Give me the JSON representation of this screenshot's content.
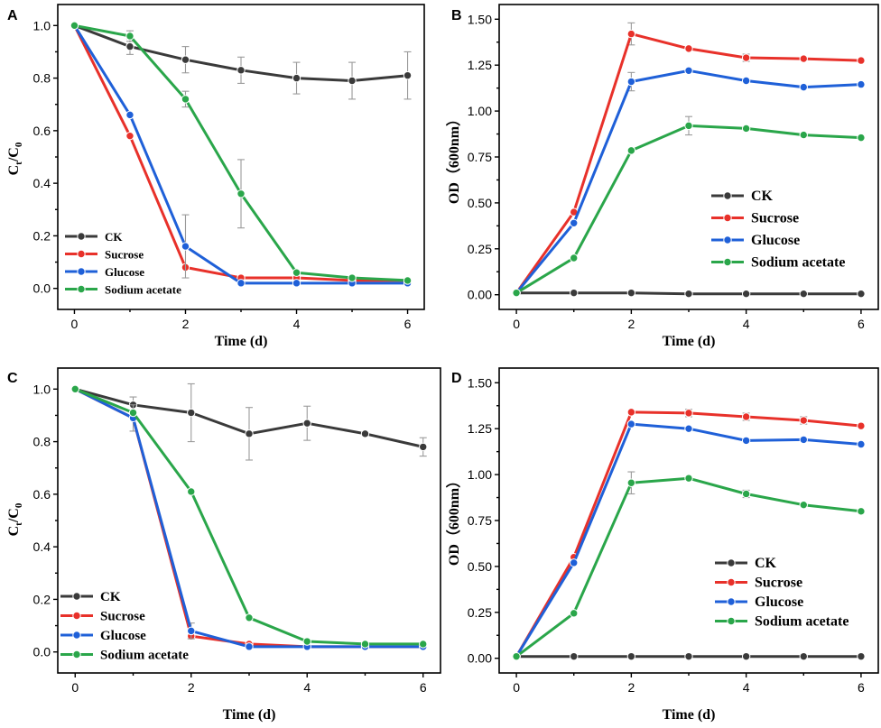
{
  "chart_data": [
    {
      "panel": "A",
      "type": "line",
      "xlabel": "Time (d)",
      "ylabel": "Ct/C0",
      "xlim": [
        -0.3,
        6.3
      ],
      "ylim": [
        -0.08,
        1.08
      ],
      "xticks": [
        0,
        2,
        4,
        6
      ],
      "xtick_labels": [
        "0",
        "2",
        "4",
        "6"
      ],
      "yticks": [
        0.0,
        0.2,
        0.4,
        0.6,
        0.8,
        1.0
      ],
      "ytick_labels": [
        "0.0",
        "0.2",
        "0.4",
        "0.6",
        "0.8",
        "1.0"
      ],
      "legend_position": "bottom-left",
      "series": [
        {
          "name": "CK",
          "color": "#3a3a3a",
          "x": [
            0,
            1,
            2,
            3,
            4,
            5,
            6
          ],
          "y": [
            1.0,
            0.92,
            0.87,
            0.83,
            0.8,
            0.79,
            0.81
          ],
          "err": [
            0,
            0.03,
            0.05,
            0.05,
            0.06,
            0.07,
            0.09
          ]
        },
        {
          "name": "Sucrose",
          "color": "#e8312a",
          "x": [
            0,
            1,
            2,
            3,
            4,
            5,
            6
          ],
          "y": [
            1.0,
            0.58,
            0.08,
            0.04,
            0.04,
            0.03,
            0.03
          ],
          "err": [
            0,
            0,
            0,
            0,
            0,
            0,
            0
          ]
        },
        {
          "name": "Glucose",
          "color": "#1f60d8",
          "x": [
            0,
            1,
            2,
            3,
            4,
            5,
            6
          ],
          "y": [
            1.0,
            0.66,
            0.16,
            0.02,
            0.02,
            0.02,
            0.02
          ],
          "err": [
            0,
            0,
            0.12,
            0,
            0,
            0,
            0
          ]
        },
        {
          "name": "Sodium acetate",
          "color": "#2aa64a",
          "x": [
            0,
            1,
            2,
            3,
            4,
            5,
            6
          ],
          "y": [
            1.0,
            0.96,
            0.72,
            0.36,
            0.06,
            0.04,
            0.03
          ],
          "err": [
            0,
            0.02,
            0.03,
            0.13,
            0,
            0,
            0
          ]
        }
      ]
    },
    {
      "panel": "B",
      "type": "line",
      "xlabel": "Time (d)",
      "ylabel": "OD（600nm）",
      "xlim": [
        -0.3,
        6.3
      ],
      "ylim": [
        -0.08,
        1.58
      ],
      "xticks": [
        0,
        2,
        4,
        6
      ],
      "xtick_labels": [
        "0",
        "2",
        "4",
        "6"
      ],
      "yticks": [
        0.0,
        0.25,
        0.5,
        0.75,
        1.0,
        1.25,
        1.5
      ],
      "ytick_labels": [
        "0.00",
        "0.25",
        "0.50",
        "0.75",
        "1.00",
        "1.25",
        "1.50"
      ],
      "legend_position": "center-right",
      "series": [
        {
          "name": "CK",
          "color": "#3a3a3a",
          "x": [
            0,
            1,
            2,
            3,
            4,
            5,
            6
          ],
          "y": [
            0.01,
            0.01,
            0.01,
            0.005,
            0.005,
            0.005,
            0.005
          ],
          "err": [
            0,
            0,
            0,
            0,
            0,
            0,
            0
          ]
        },
        {
          "name": "Sucrose",
          "color": "#e8312a",
          "x": [
            0,
            1,
            2,
            3,
            4,
            5,
            6
          ],
          "y": [
            0.01,
            0.45,
            1.42,
            1.34,
            1.29,
            1.285,
            1.275
          ],
          "err": [
            0,
            0,
            0.06,
            0,
            0.02,
            0,
            0
          ]
        },
        {
          "name": "Glucose",
          "color": "#1f60d8",
          "x": [
            0,
            1,
            2,
            3,
            4,
            5,
            6
          ],
          "y": [
            0.01,
            0.39,
            1.16,
            1.22,
            1.165,
            1.13,
            1.145
          ],
          "err": [
            0,
            0,
            0.05,
            0,
            0,
            0,
            0
          ]
        },
        {
          "name": "Sodium acetate",
          "color": "#2aa64a",
          "x": [
            0,
            1,
            2,
            3,
            4,
            5,
            6
          ],
          "y": [
            0.01,
            0.2,
            0.785,
            0.92,
            0.905,
            0.87,
            0.855
          ],
          "err": [
            0,
            0,
            0,
            0.05,
            0,
            0,
            0
          ]
        }
      ]
    },
    {
      "panel": "C",
      "type": "line",
      "xlabel": "Time (d)",
      "ylabel": "Ct/C0",
      "xlim": [
        -0.3,
        6.3
      ],
      "ylim": [
        -0.08,
        1.08
      ],
      "xticks": [
        0,
        2,
        4,
        6
      ],
      "xtick_labels": [
        "0",
        "2",
        "4",
        "6"
      ],
      "yticks": [
        0.0,
        0.2,
        0.4,
        0.6,
        0.8,
        1.0
      ],
      "ytick_labels": [
        "0.0",
        "0.2",
        "0.4",
        "0.6",
        "0.8",
        "1.0"
      ],
      "legend_position": "bottom-left",
      "series": [
        {
          "name": "CK",
          "color": "#3a3a3a",
          "x": [
            0,
            1,
            2,
            3,
            4,
            5,
            6
          ],
          "y": [
            1.0,
            0.94,
            0.91,
            0.83,
            0.87,
            0.83,
            0.78
          ],
          "err": [
            0,
            0.03,
            0.11,
            0.1,
            0.065,
            0,
            0.035
          ]
        },
        {
          "name": "Sucrose",
          "color": "#e8312a",
          "x": [
            0,
            1,
            2,
            3,
            4,
            5,
            6
          ],
          "y": [
            1.0,
            0.89,
            0.06,
            0.03,
            0.02,
            0.02,
            0.02
          ],
          "err": [
            0,
            0.05,
            0,
            0,
            0,
            0,
            0
          ]
        },
        {
          "name": "Glucose",
          "color": "#1f60d8",
          "x": [
            0,
            1,
            2,
            3,
            4,
            5,
            6
          ],
          "y": [
            1.0,
            0.89,
            0.08,
            0.02,
            0.02,
            0.02,
            0.02
          ],
          "err": [
            0,
            0,
            0.03,
            0,
            0,
            0,
            0
          ]
        },
        {
          "name": "Sodium acetate",
          "color": "#2aa64a",
          "x": [
            0,
            1,
            2,
            3,
            4,
            5,
            6
          ],
          "y": [
            1.0,
            0.91,
            0.61,
            0.13,
            0.04,
            0.03,
            0.03
          ],
          "err": [
            0,
            0,
            0,
            0,
            0,
            0,
            0
          ]
        }
      ]
    },
    {
      "panel": "D",
      "type": "line",
      "xlabel": "Time (d)",
      "ylabel": "OD（600nm）",
      "xlim": [
        -0.3,
        6.3
      ],
      "ylim": [
        -0.08,
        1.58
      ],
      "xticks": [
        0,
        2,
        4,
        6
      ],
      "xtick_labels": [
        "0",
        "2",
        "4",
        "6"
      ],
      "yticks": [
        0.0,
        0.25,
        0.5,
        0.75,
        1.0,
        1.25,
        1.5
      ],
      "ytick_labels": [
        "0.00",
        "0.25",
        "0.50",
        "0.75",
        "1.00",
        "1.25",
        "1.50"
      ],
      "legend_position": "bottom-right",
      "series": [
        {
          "name": "CK",
          "color": "#3a3a3a",
          "x": [
            0,
            1,
            2,
            3,
            4,
            5,
            6
          ],
          "y": [
            0.01,
            0.01,
            0.01,
            0.01,
            0.01,
            0.01,
            0.01
          ],
          "err": [
            0,
            0,
            0,
            0,
            0,
            0,
            0
          ]
        },
        {
          "name": "Sucrose",
          "color": "#e8312a",
          "x": [
            0,
            1,
            2,
            3,
            4,
            5,
            6
          ],
          "y": [
            0.01,
            0.55,
            1.34,
            1.335,
            1.315,
            1.295,
            1.265
          ],
          "err": [
            0,
            0,
            0,
            0.02,
            0.02,
            0.02,
            0
          ]
        },
        {
          "name": "Glucose",
          "color": "#1f60d8",
          "x": [
            0,
            1,
            2,
            3,
            4,
            5,
            6
          ],
          "y": [
            0.01,
            0.52,
            1.275,
            1.25,
            1.185,
            1.19,
            1.165
          ],
          "err": [
            0,
            0,
            0,
            0,
            0,
            0,
            0
          ]
        },
        {
          "name": "Sodium acetate",
          "color": "#2aa64a",
          "x": [
            0,
            1,
            2,
            3,
            4,
            5,
            6
          ],
          "y": [
            0.01,
            0.245,
            0.955,
            0.98,
            0.895,
            0.835,
            0.8
          ],
          "err": [
            0,
            0,
            0.06,
            0,
            0.02,
            0,
            0
          ]
        }
      ]
    }
  ]
}
